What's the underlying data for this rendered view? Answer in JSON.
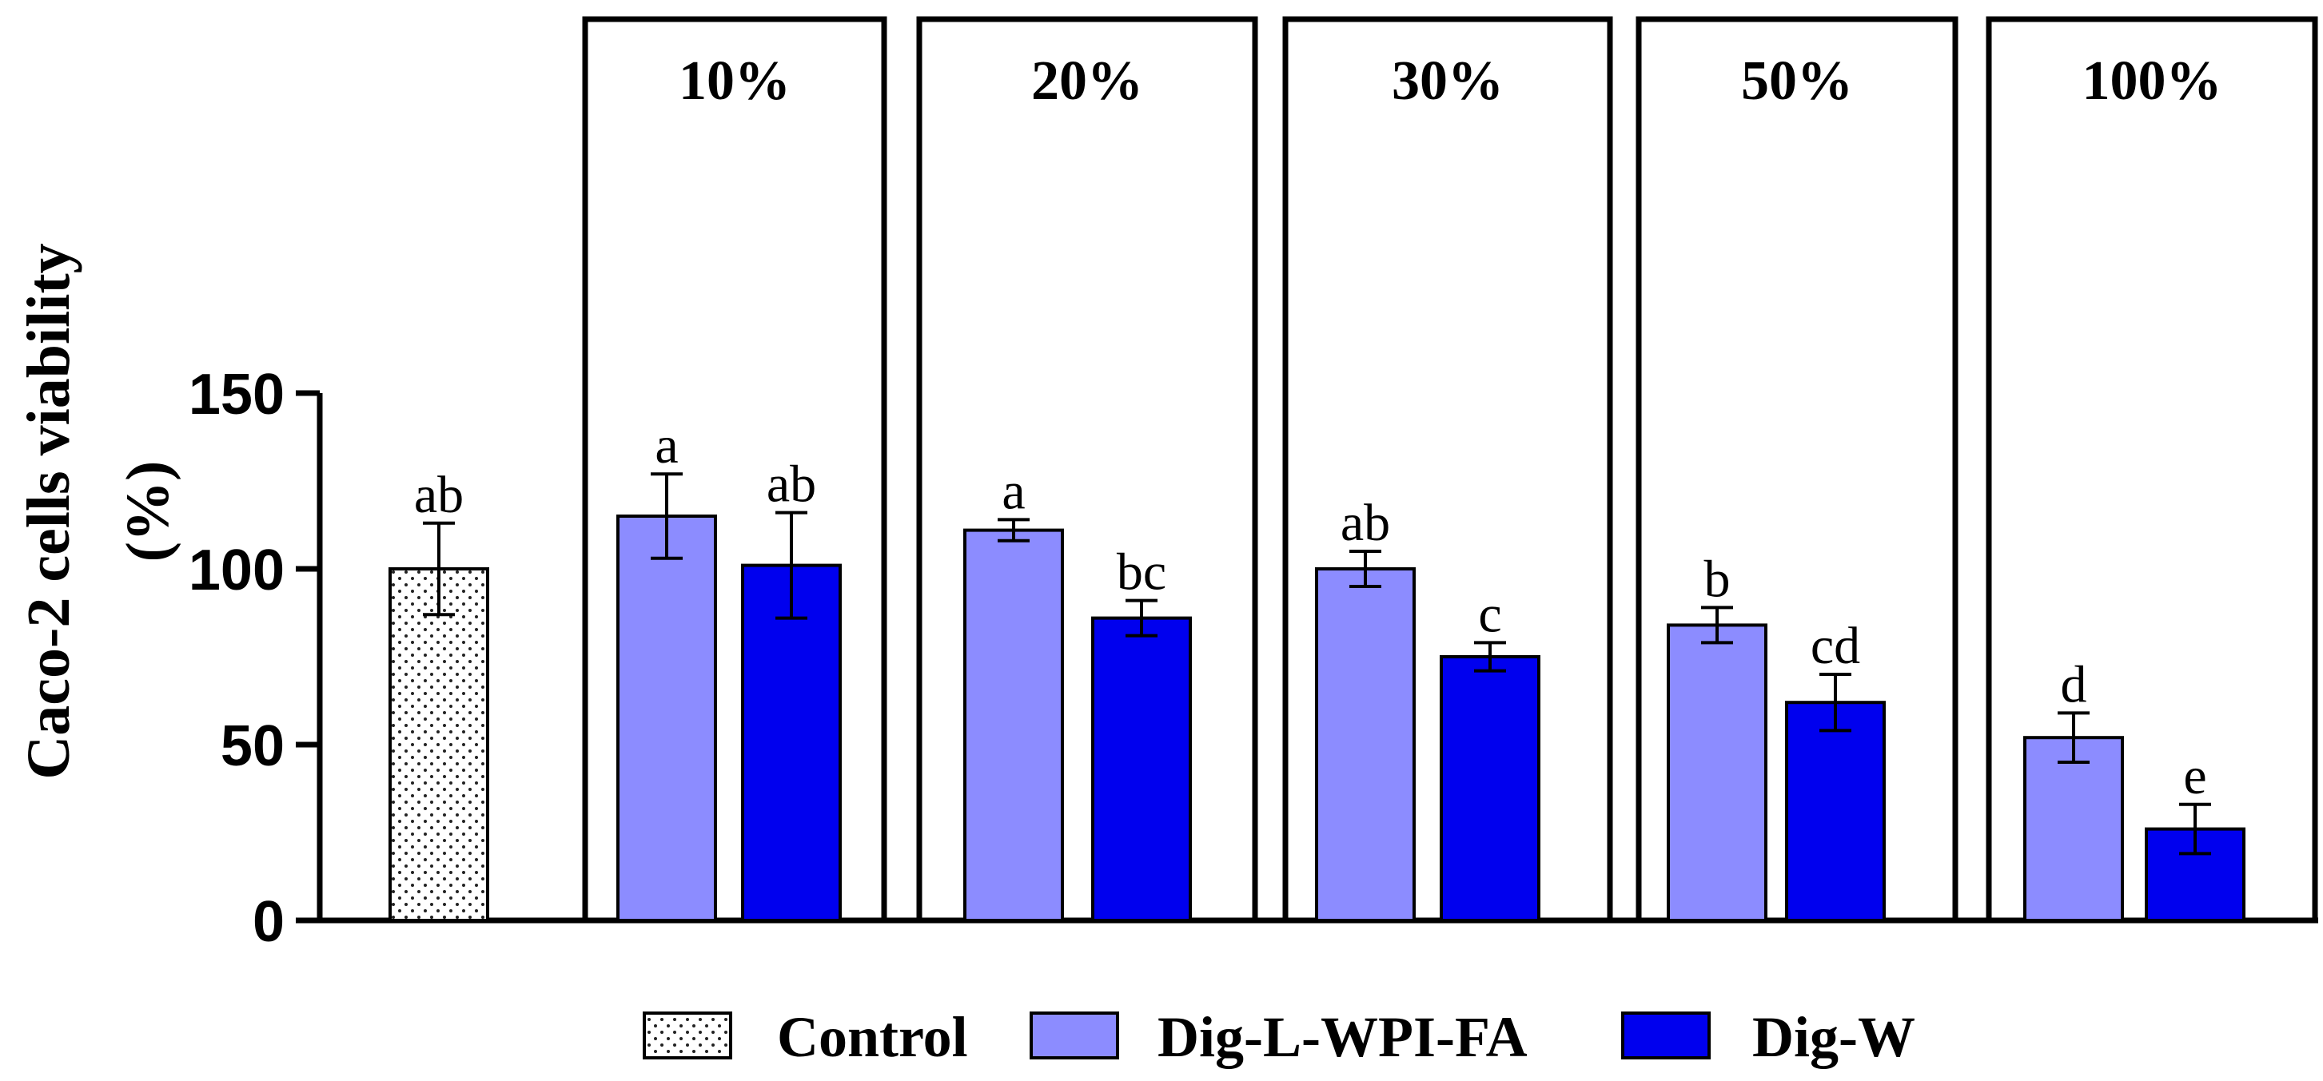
{
  "chart_data": {
    "type": "bar",
    "ylabel_line1": "Caco-2 cells viability",
    "ylabel_line2": "(%)",
    "ylim": [
      0,
      150
    ],
    "yticks": [
      0,
      50,
      100,
      150
    ],
    "colors": {
      "Control": "#ffffff",
      "Dig-L-WPI-FA": "#8c8cff",
      "Dig-W": "#0000ee"
    },
    "legend": [
      "Control",
      "Dig-L-WPI-FA",
      "Dig-W"
    ],
    "groups": [
      {
        "label": "",
        "boxed": false,
        "bars": [
          {
            "series": "Control",
            "value": 100,
            "error": 13,
            "sig": "ab"
          }
        ]
      },
      {
        "label": "10%",
        "boxed": true,
        "bars": [
          {
            "series": "Dig-L-WPI-FA",
            "value": 115,
            "error": 12,
            "sig": "a"
          },
          {
            "series": "Dig-W",
            "value": 101,
            "error": 15,
            "sig": "ab"
          }
        ]
      },
      {
        "label": "20%",
        "boxed": true,
        "bars": [
          {
            "series": "Dig-L-WPI-FA",
            "value": 111,
            "error": 3,
            "sig": "a"
          },
          {
            "series": "Dig-W",
            "value": 86,
            "error": 5,
            "sig": "bc"
          }
        ]
      },
      {
        "label": "30%",
        "boxed": true,
        "bars": [
          {
            "series": "Dig-L-WPI-FA",
            "value": 100,
            "error": 5,
            "sig": "ab"
          },
          {
            "series": "Dig-W",
            "value": 75,
            "error": 4,
            "sig": "c"
          }
        ]
      },
      {
        "label": "50%",
        "boxed": true,
        "bars": [
          {
            "series": "Dig-L-WPI-FA",
            "value": 84,
            "error": 5,
            "sig": "b"
          },
          {
            "series": "Dig-W",
            "value": 62,
            "error": 8,
            "sig": "cd"
          }
        ]
      },
      {
        "label": "100%",
        "boxed": true,
        "bars": [
          {
            "series": "Dig-L-WPI-FA",
            "value": 52,
            "error": 7,
            "sig": "d"
          },
          {
            "series": "Dig-W",
            "value": 26,
            "error": 7,
            "sig": "e"
          }
        ]
      }
    ]
  }
}
